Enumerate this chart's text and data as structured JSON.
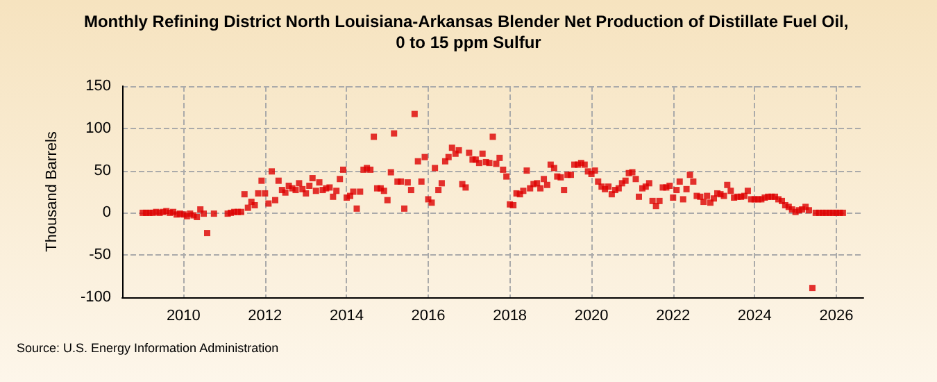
{
  "chart_data": {
    "type": "scatter",
    "title": "Monthly Refining District North Louisiana-Arkansas Blender Net Production of Distillate Fuel Oil, 0 to 15 ppm Sulfur",
    "ylabel": "Thousand Barrels",
    "annotations": [
      "Source: U.S. Energy Information Administration"
    ],
    "xlim": [
      "2008-07",
      "2026-09"
    ],
    "xticks": [
      "2010",
      "2012",
      "2014",
      "2016",
      "2018",
      "2020",
      "2022",
      "2024",
      "2026"
    ],
    "ylim": [
      -100,
      150
    ],
    "yticks": [
      -100,
      -50,
      0,
      50,
      100,
      150
    ],
    "grid": true,
    "marker": "square",
    "x": [
      "2009-01",
      "2009-02",
      "2009-03",
      "2009-04",
      "2009-05",
      "2009-06",
      "2009-07",
      "2009-08",
      "2009-09",
      "2009-10",
      "2009-11",
      "2009-12",
      "2010-01",
      "2010-02",
      "2010-03",
      "2010-04",
      "2010-05",
      "2010-06",
      "2010-07",
      "2010-08",
      "2010-09",
      "2010-10",
      "2010-11",
      "2010-12",
      "2011-01",
      "2011-02",
      "2011-03",
      "2011-04",
      "2011-05",
      "2011-06",
      "2011-07",
      "2011-08",
      "2011-09",
      "2011-10",
      "2011-11",
      "2011-12",
      "2012-01",
      "2012-02",
      "2012-03",
      "2012-04",
      "2012-05",
      "2012-06",
      "2012-07",
      "2012-08",
      "2012-09",
      "2012-10",
      "2012-11",
      "2012-12",
      "2013-01",
      "2013-02",
      "2013-03",
      "2013-04",
      "2013-05",
      "2013-06",
      "2013-07",
      "2013-08",
      "2013-09",
      "2013-10",
      "2013-11",
      "2013-12",
      "2014-01",
      "2014-02",
      "2014-03",
      "2014-04",
      "2014-05",
      "2014-06",
      "2014-07",
      "2014-08",
      "2014-09",
      "2014-10",
      "2014-11",
      "2014-12",
      "2015-01",
      "2015-02",
      "2015-03",
      "2015-04",
      "2015-05",
      "2015-06",
      "2015-07",
      "2015-08",
      "2015-09",
      "2015-10",
      "2015-11",
      "2015-12",
      "2016-01",
      "2016-02",
      "2016-03",
      "2016-04",
      "2016-05",
      "2016-06",
      "2016-07",
      "2016-08",
      "2016-09",
      "2016-10",
      "2016-11",
      "2016-12",
      "2017-01",
      "2017-02",
      "2017-03",
      "2017-04",
      "2017-05",
      "2017-06",
      "2017-07",
      "2017-08",
      "2017-09",
      "2017-10",
      "2017-11",
      "2017-12",
      "2018-01",
      "2018-02",
      "2018-03",
      "2018-04",
      "2018-05",
      "2018-06",
      "2018-07",
      "2018-08",
      "2018-09",
      "2018-10",
      "2018-11",
      "2018-12",
      "2019-01",
      "2019-02",
      "2019-03",
      "2019-04",
      "2019-05",
      "2019-06",
      "2019-07",
      "2019-08",
      "2019-09",
      "2019-10",
      "2019-11",
      "2019-12",
      "2020-01",
      "2020-02",
      "2020-03",
      "2020-04",
      "2020-05",
      "2020-06",
      "2020-07",
      "2020-08",
      "2020-09",
      "2020-10",
      "2020-11",
      "2020-12",
      "2021-01",
      "2021-02",
      "2021-03",
      "2021-04",
      "2021-05",
      "2021-06",
      "2021-07",
      "2021-08",
      "2021-09",
      "2021-10",
      "2021-11",
      "2021-12",
      "2022-01",
      "2022-02",
      "2022-03",
      "2022-04",
      "2022-05",
      "2022-06",
      "2022-07",
      "2022-08",
      "2022-09",
      "2022-10",
      "2022-11",
      "2022-12",
      "2023-01",
      "2023-02",
      "2023-03",
      "2023-04",
      "2023-05",
      "2023-06",
      "2023-07",
      "2023-08",
      "2023-09",
      "2023-10",
      "2023-11",
      "2023-12",
      "2024-01",
      "2024-02",
      "2024-03",
      "2024-04",
      "2024-05",
      "2024-06",
      "2024-07",
      "2024-08",
      "2024-09",
      "2024-10",
      "2024-11",
      "2024-12",
      "2025-01",
      "2025-02",
      "2025-03",
      "2025-04",
      "2025-05",
      "2025-06",
      "2025-07",
      "2025-08",
      "2025-09",
      "2025-10",
      "2025-11",
      "2025-12",
      "2026-01",
      "2026-02",
      "2026-03"
    ],
    "series": [
      {
        "color": "#dd0000",
        "values": [
          0,
          0,
          0,
          0,
          1,
          0,
          1,
          2,
          0,
          1,
          -2,
          -1,
          -2,
          -4,
          -1,
          -3,
          -5,
          4,
          -1,
          -24,
          null,
          -1,
          null,
          null,
          null,
          -1,
          0,
          1,
          1,
          1,
          22,
          6,
          13,
          9,
          23,
          38,
          23,
          11,
          49,
          15,
          38,
          27,
          24,
          32,
          29,
          27,
          35,
          28,
          23,
          32,
          41,
          26,
          36,
          27,
          29,
          30,
          19,
          26,
          40,
          51,
          18,
          20,
          25,
          5,
          25,
          51,
          53,
          51,
          90,
          29,
          29,
          26,
          15,
          48,
          94,
          37,
          37,
          5,
          36,
          27,
          117,
          61,
          37,
          66,
          16,
          12,
          53,
          27,
          35,
          61,
          66,
          77,
          70,
          74,
          34,
          30,
          71,
          63,
          63,
          59,
          70,
          60,
          59,
          90,
          58,
          65,
          51,
          43,
          10,
          9,
          23,
          22,
          26,
          50,
          29,
          34,
          35,
          29,
          40,
          33,
          57,
          53,
          43,
          42,
          27,
          45,
          45,
          57,
          57,
          59,
          57,
          49,
          46,
          50,
          37,
          31,
          28,
          31,
          22,
          27,
          29,
          35,
          38,
          47,
          48,
          40,
          19,
          29,
          31,
          35,
          14,
          8,
          14,
          30,
          30,
          32,
          18,
          27,
          37,
          16,
          28,
          45,
          37,
          20,
          19,
          13,
          20,
          12,
          17,
          23,
          22,
          20,
          33,
          26,
          18,
          19,
          19,
          20,
          26,
          16,
          16,
          16,
          16,
          18,
          19,
          19,
          19,
          16,
          14,
          9,
          7,
          4,
          1,
          3,
          4,
          7,
          3,
          -89,
          0,
          0,
          0,
          0,
          0,
          0,
          0,
          0,
          0
        ]
      }
    ]
  }
}
